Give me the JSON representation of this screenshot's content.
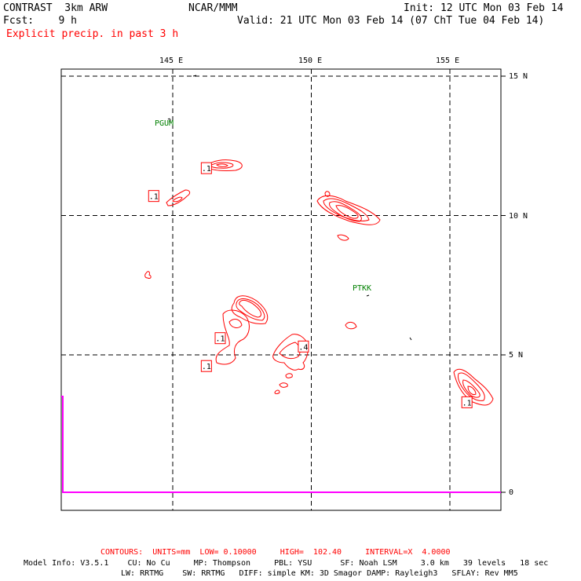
{
  "header": {
    "model": "CONTRAST  3km ARW",
    "center": "NCAR/MMM",
    "init": "Init: 12 UTC Mon 03 Feb 14",
    "fcst": "Fcst:    9 h",
    "valid": "Valid: 21 UTC Mon 03 Feb 14 (07 ChT Tue 04 Feb 14)",
    "field": "Explicit precip. in past 3 h"
  },
  "colors": {
    "precip": "#ff0000",
    "station": "#008000",
    "profile": "#ff00ff",
    "title_field": "#ff0000"
  },
  "chart_data": {
    "type": "contour",
    "title": "Explicit precip. in past 3 h",
    "units": "mm",
    "lon_ticks": [
      "145 E",
      "150 E",
      "155 E"
    ],
    "lat_ticks": [
      "15 N",
      "10 N",
      "5 N"
    ],
    "right_axis_zero": "0",
    "xlim": [
      141,
      157
    ],
    "ylim": [
      0,
      15.3
    ],
    "grid": "dashed",
    "stations": [
      {
        "name": "PGUM",
        "lon": 144.8,
        "lat": 13.5
      },
      {
        "name": "PTKK",
        "lon": 151.9,
        "lat": 7.4
      }
    ],
    "contour_labels": [
      {
        "text": ".1",
        "lon": 146.2,
        "lat": 11.7
      },
      {
        "text": ".1",
        "lon": 144.3,
        "lat": 10.7
      },
      {
        "text": ".1",
        "lon": 146.7,
        "lat": 5.6
      },
      {
        "text": ".1",
        "lon": 146.2,
        "lat": 4.6
      },
      {
        "text": ".4",
        "lon": 149.7,
        "lat": 5.3
      },
      {
        "text": ".1",
        "lon": 155.6,
        "lat": 3.3
      }
    ]
  },
  "footer": {
    "contours_line": "CONTOURS:  UNITS=mm  LOW= 0.10000     HIGH=  102.40     INTERVAL=X  4.0000",
    "model_info_1": "Model Info: V3.5.1    CU: No Cu     MP: Thompson     PBL: YSU      SF: Noah LSM     3.0 km   39 levels   18 sec",
    "model_info_2": "LW: RRTMG    SW: RRTMG   DIFF: simple KM: 3D Smagor DAMP: Rayleigh3   SFLAY: Rev MM5"
  }
}
